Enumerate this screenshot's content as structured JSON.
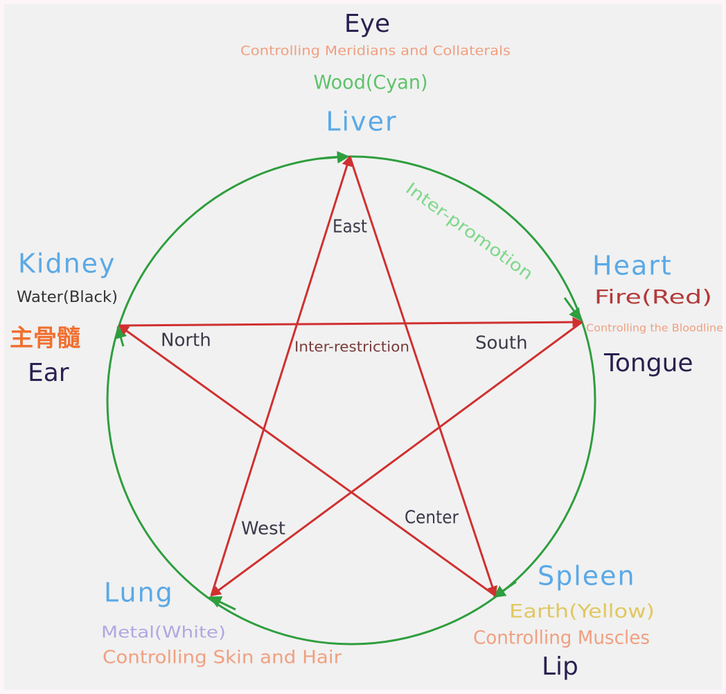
{
  "nodes": [
    {
      "sense": "Eye",
      "function": "Controlling Meridians and Collaterals",
      "element": "Wood(Cyan)",
      "organ": "Liver"
    },
    {
      "organ": "Heart",
      "element": "Fire(Red)",
      "function": "Controlling the Bloodline",
      "sense": "Tongue"
    },
    {
      "organ": "Spleen",
      "element": "Earth(Yellow)",
      "function": "Controlling Muscles",
      "sense": "Lip"
    },
    {
      "organ": "Lung",
      "element": "Metal(White)",
      "function": "Controlling Skin and Hair"
    },
    {
      "organ": "Kidney",
      "element": "Water(Black)",
      "function": "主骨髓",
      "sense": "Ear"
    }
  ],
  "directions": [
    "East",
    "South",
    "Center",
    "West",
    "North"
  ],
  "cycles": {
    "promotion": "Inter-promotion",
    "restriction": "Inter-restriction"
  }
}
